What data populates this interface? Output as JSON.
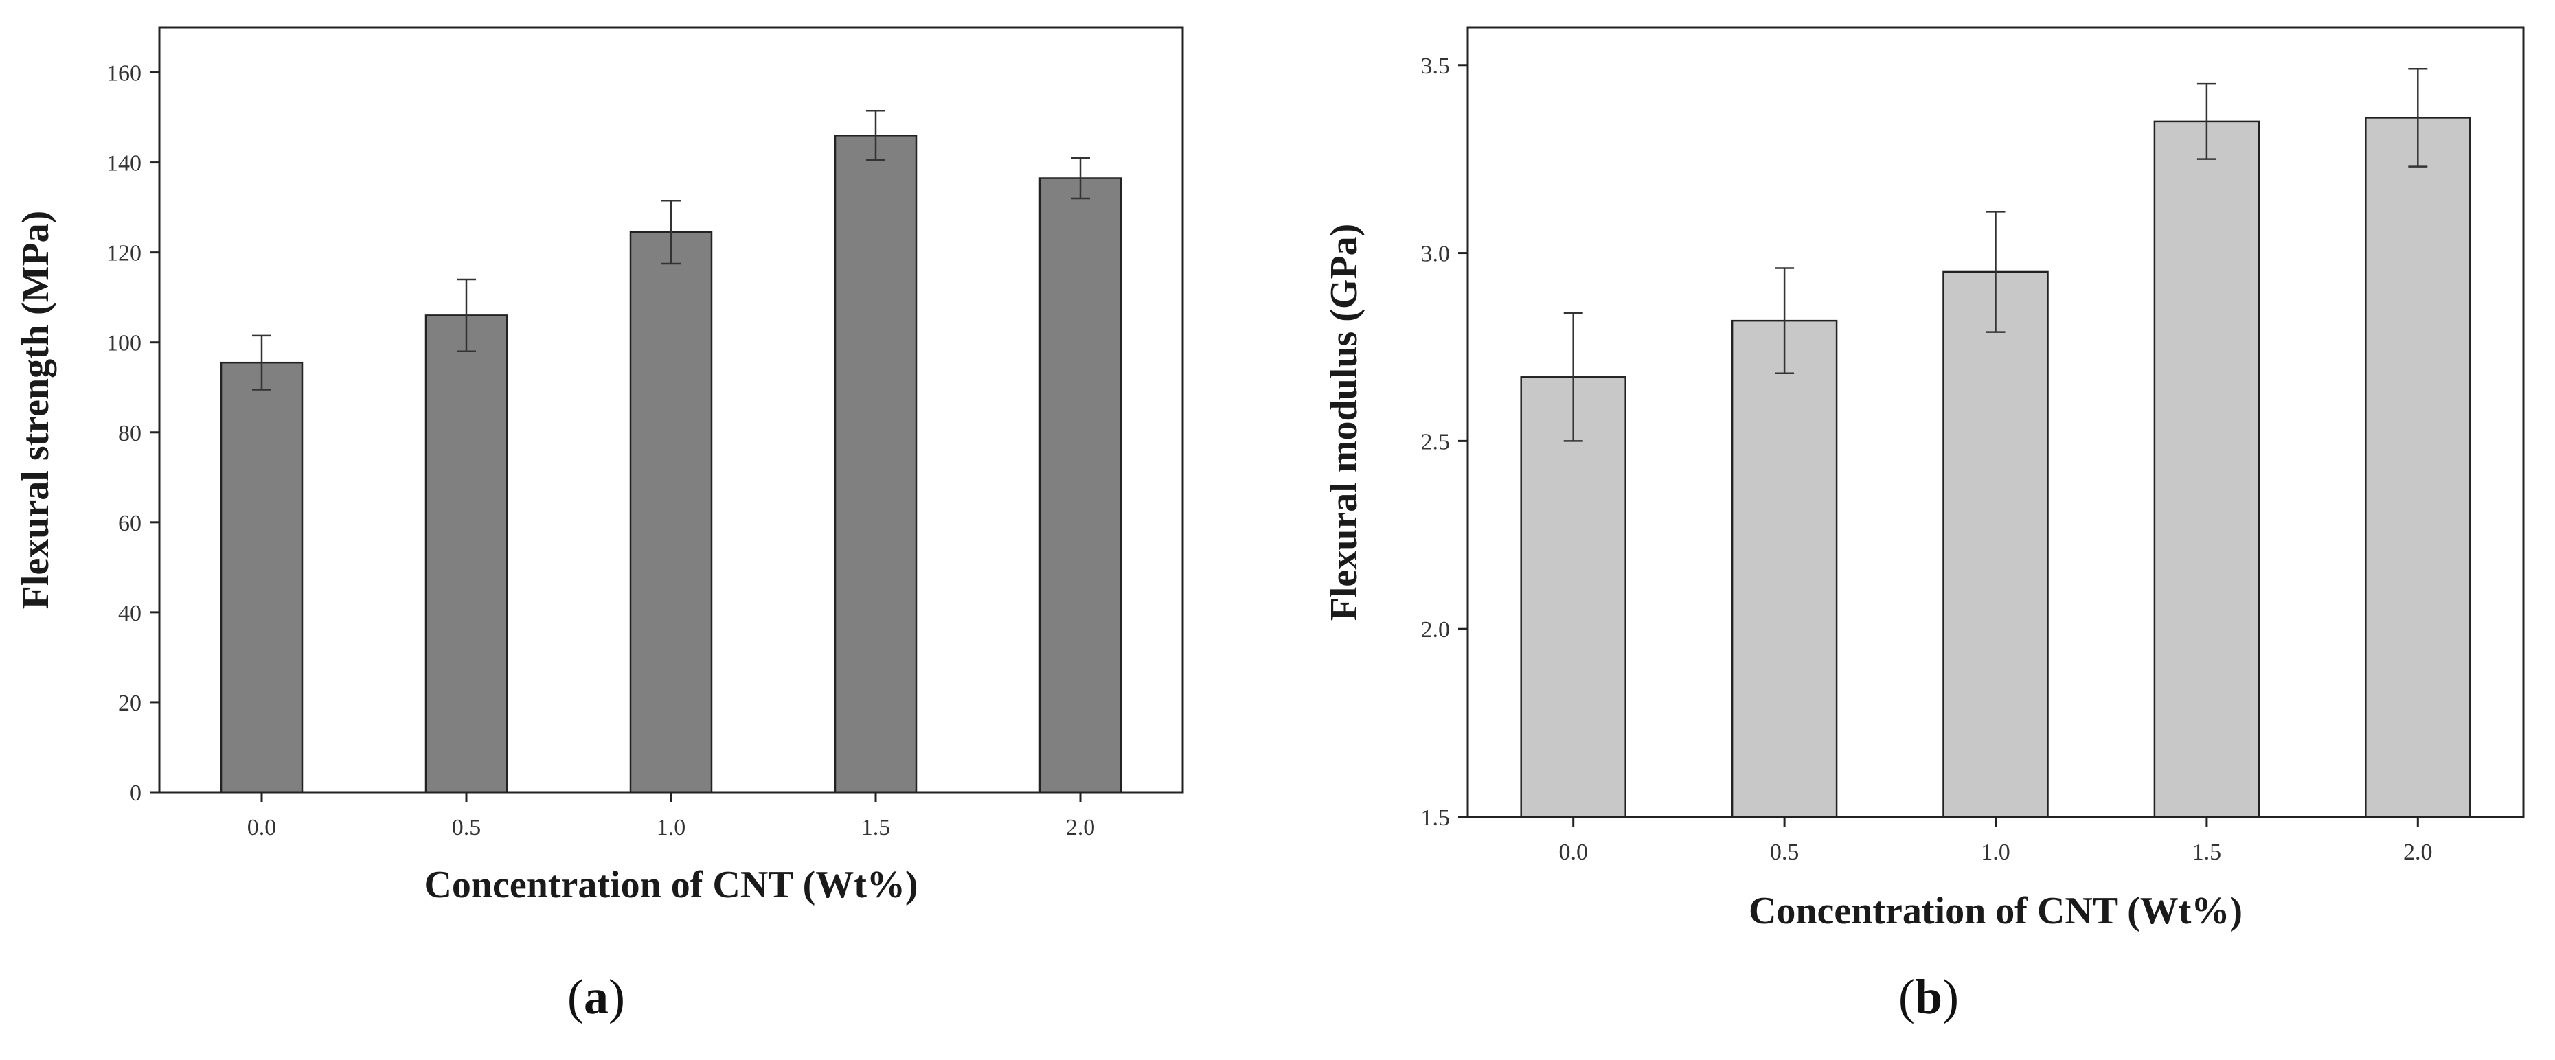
{
  "chart_data": [
    {
      "type": "bar",
      "panel_label": "a",
      "categories": [
        "0.0",
        "0.5",
        "1.0",
        "1.5",
        "2.0"
      ],
      "values": [
        95.5,
        106,
        124.5,
        146,
        136.5
      ],
      "errors": [
        6,
        8,
        7,
        5.5,
        4.5
      ],
      "xlabel": "Concentration of CNT (Wt%)",
      "ylabel": "Flexural strength (MPa)",
      "ylim": [
        0,
        170
      ],
      "yticks": [
        0,
        20,
        40,
        60,
        80,
        100,
        120,
        140,
        160
      ],
      "ytick_labels": [
        "0",
        "20",
        "40",
        "60",
        "80",
        "100",
        "120",
        "140",
        "160"
      ],
      "bar_color": "#808080",
      "grid": false
    },
    {
      "type": "bar",
      "panel_label": "b",
      "categories": [
        "0.0",
        "0.5",
        "1.0",
        "1.5",
        "2.0"
      ],
      "values": [
        2.67,
        2.82,
        2.95,
        3.35,
        3.36
      ],
      "errors": [
        0.17,
        0.14,
        0.16,
        0.1,
        0.13
      ],
      "xlabel": "Concentration of CNT (Wt%)",
      "ylabel": "Flexural modulus (GPa)",
      "ylim": [
        1.5,
        3.6
      ],
      "yticks": [
        1.5,
        2.0,
        2.5,
        3.0,
        3.5
      ],
      "ytick_labels": [
        "1.5",
        "2.0",
        "2.5",
        "3.0",
        "3.5"
      ],
      "bar_color": "#c8c8c8",
      "grid": false
    }
  ]
}
